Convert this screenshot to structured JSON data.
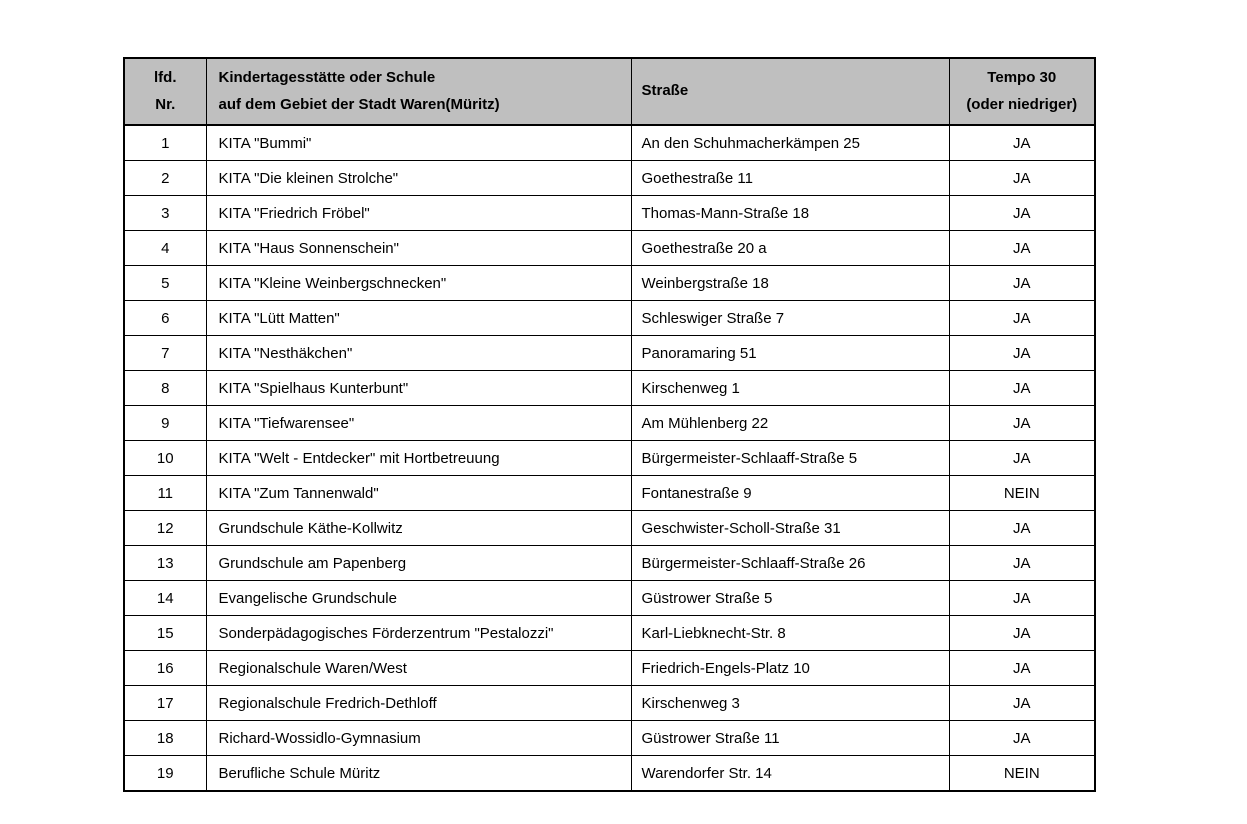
{
  "table": {
    "colors": {
      "header_bg": "#bfbfbf",
      "border": "#000000",
      "page_bg": "#ffffff"
    },
    "header": {
      "col_nr": "lfd.\nNr.",
      "col_name": "Kindertagesstätte oder Schule\nauf dem Gebiet der Stadt Waren(Müritz)",
      "col_street": "Straße",
      "col_tempo": "Tempo 30\n(oder niedriger)"
    },
    "rows": [
      {
        "nr": "1",
        "name": "KITA \"Bummi\"",
        "street": "An den Schuhmacherkämpen 25",
        "tempo30": "JA"
      },
      {
        "nr": "2",
        "name": "KITA \"Die kleinen Strolche\"",
        "street": "Goethestraße 11",
        "tempo30": "JA"
      },
      {
        "nr": "3",
        "name": "KITA \"Friedrich Fröbel\"",
        "street": "Thomas-Mann-Straße 18",
        "tempo30": "JA"
      },
      {
        "nr": "4",
        "name": "KITA \"Haus Sonnenschein\"",
        "street": "Goethestraße 20 a",
        "tempo30": "JA"
      },
      {
        "nr": "5",
        "name": "KITA \"Kleine Weinbergschnecken\"",
        "street": "Weinbergstraße 18",
        "tempo30": "JA"
      },
      {
        "nr": "6",
        "name": "KITA \"Lütt Matten\"",
        "street": "Schleswiger Straße 7",
        "tempo30": "JA"
      },
      {
        "nr": "7",
        "name": "KITA \"Nesthäkchen\"",
        "street": "Panoramaring 51",
        "tempo30": "JA"
      },
      {
        "nr": "8",
        "name": "KITA \"Spielhaus Kunterbunt\"",
        "street": "Kirschenweg 1",
        "tempo30": "JA"
      },
      {
        "nr": "9",
        "name": "KITA \"Tiefwarensee\"",
        "street": "Am Mühlenberg 22",
        "tempo30": "JA"
      },
      {
        "nr": "10",
        "name": "KITA \"Welt - Entdecker\" mit Hortbetreuung",
        "street": "Bürgermeister-Schlaaff-Straße 5",
        "tempo30": "JA"
      },
      {
        "nr": "11",
        "name": "KITA \"Zum Tannenwald\"",
        "street": "Fontanestraße 9",
        "tempo30": "NEIN"
      },
      {
        "nr": "12",
        "name": "Grundschule Käthe-Kollwitz",
        "street": "Geschwister-Scholl-Straße 31",
        "tempo30": "JA"
      },
      {
        "nr": "13",
        "name": "Grundschule am Papenberg",
        "street": "Bürgermeister-Schlaaff-Straße 26",
        "tempo30": "JA"
      },
      {
        "nr": "14",
        "name": "Evangelische Grundschule",
        "street": "Güstrower Straße 5",
        "tempo30": "JA"
      },
      {
        "nr": "15",
        "name": "Sonderpädagogisches Förderzentrum \"Pestalozzi\"",
        "street": "Karl-Liebknecht-Str. 8",
        "tempo30": "JA"
      },
      {
        "nr": "16",
        "name": "Regionalschule Waren/West",
        "street": "Friedrich-Engels-Platz 10",
        "tempo30": "JA"
      },
      {
        "nr": "17",
        "name": "Regionalschule Fredrich-Dethloff",
        "street": "Kirschenweg 3",
        "tempo30": "JA"
      },
      {
        "nr": "18",
        "name": "Richard-Wossidlo-Gymnasium",
        "street": "Güstrower Straße 11",
        "tempo30": "JA"
      },
      {
        "nr": "19",
        "name": "Berufliche Schule Müritz",
        "street": "Warendorfer Str. 14",
        "tempo30": "NEIN"
      }
    ]
  }
}
